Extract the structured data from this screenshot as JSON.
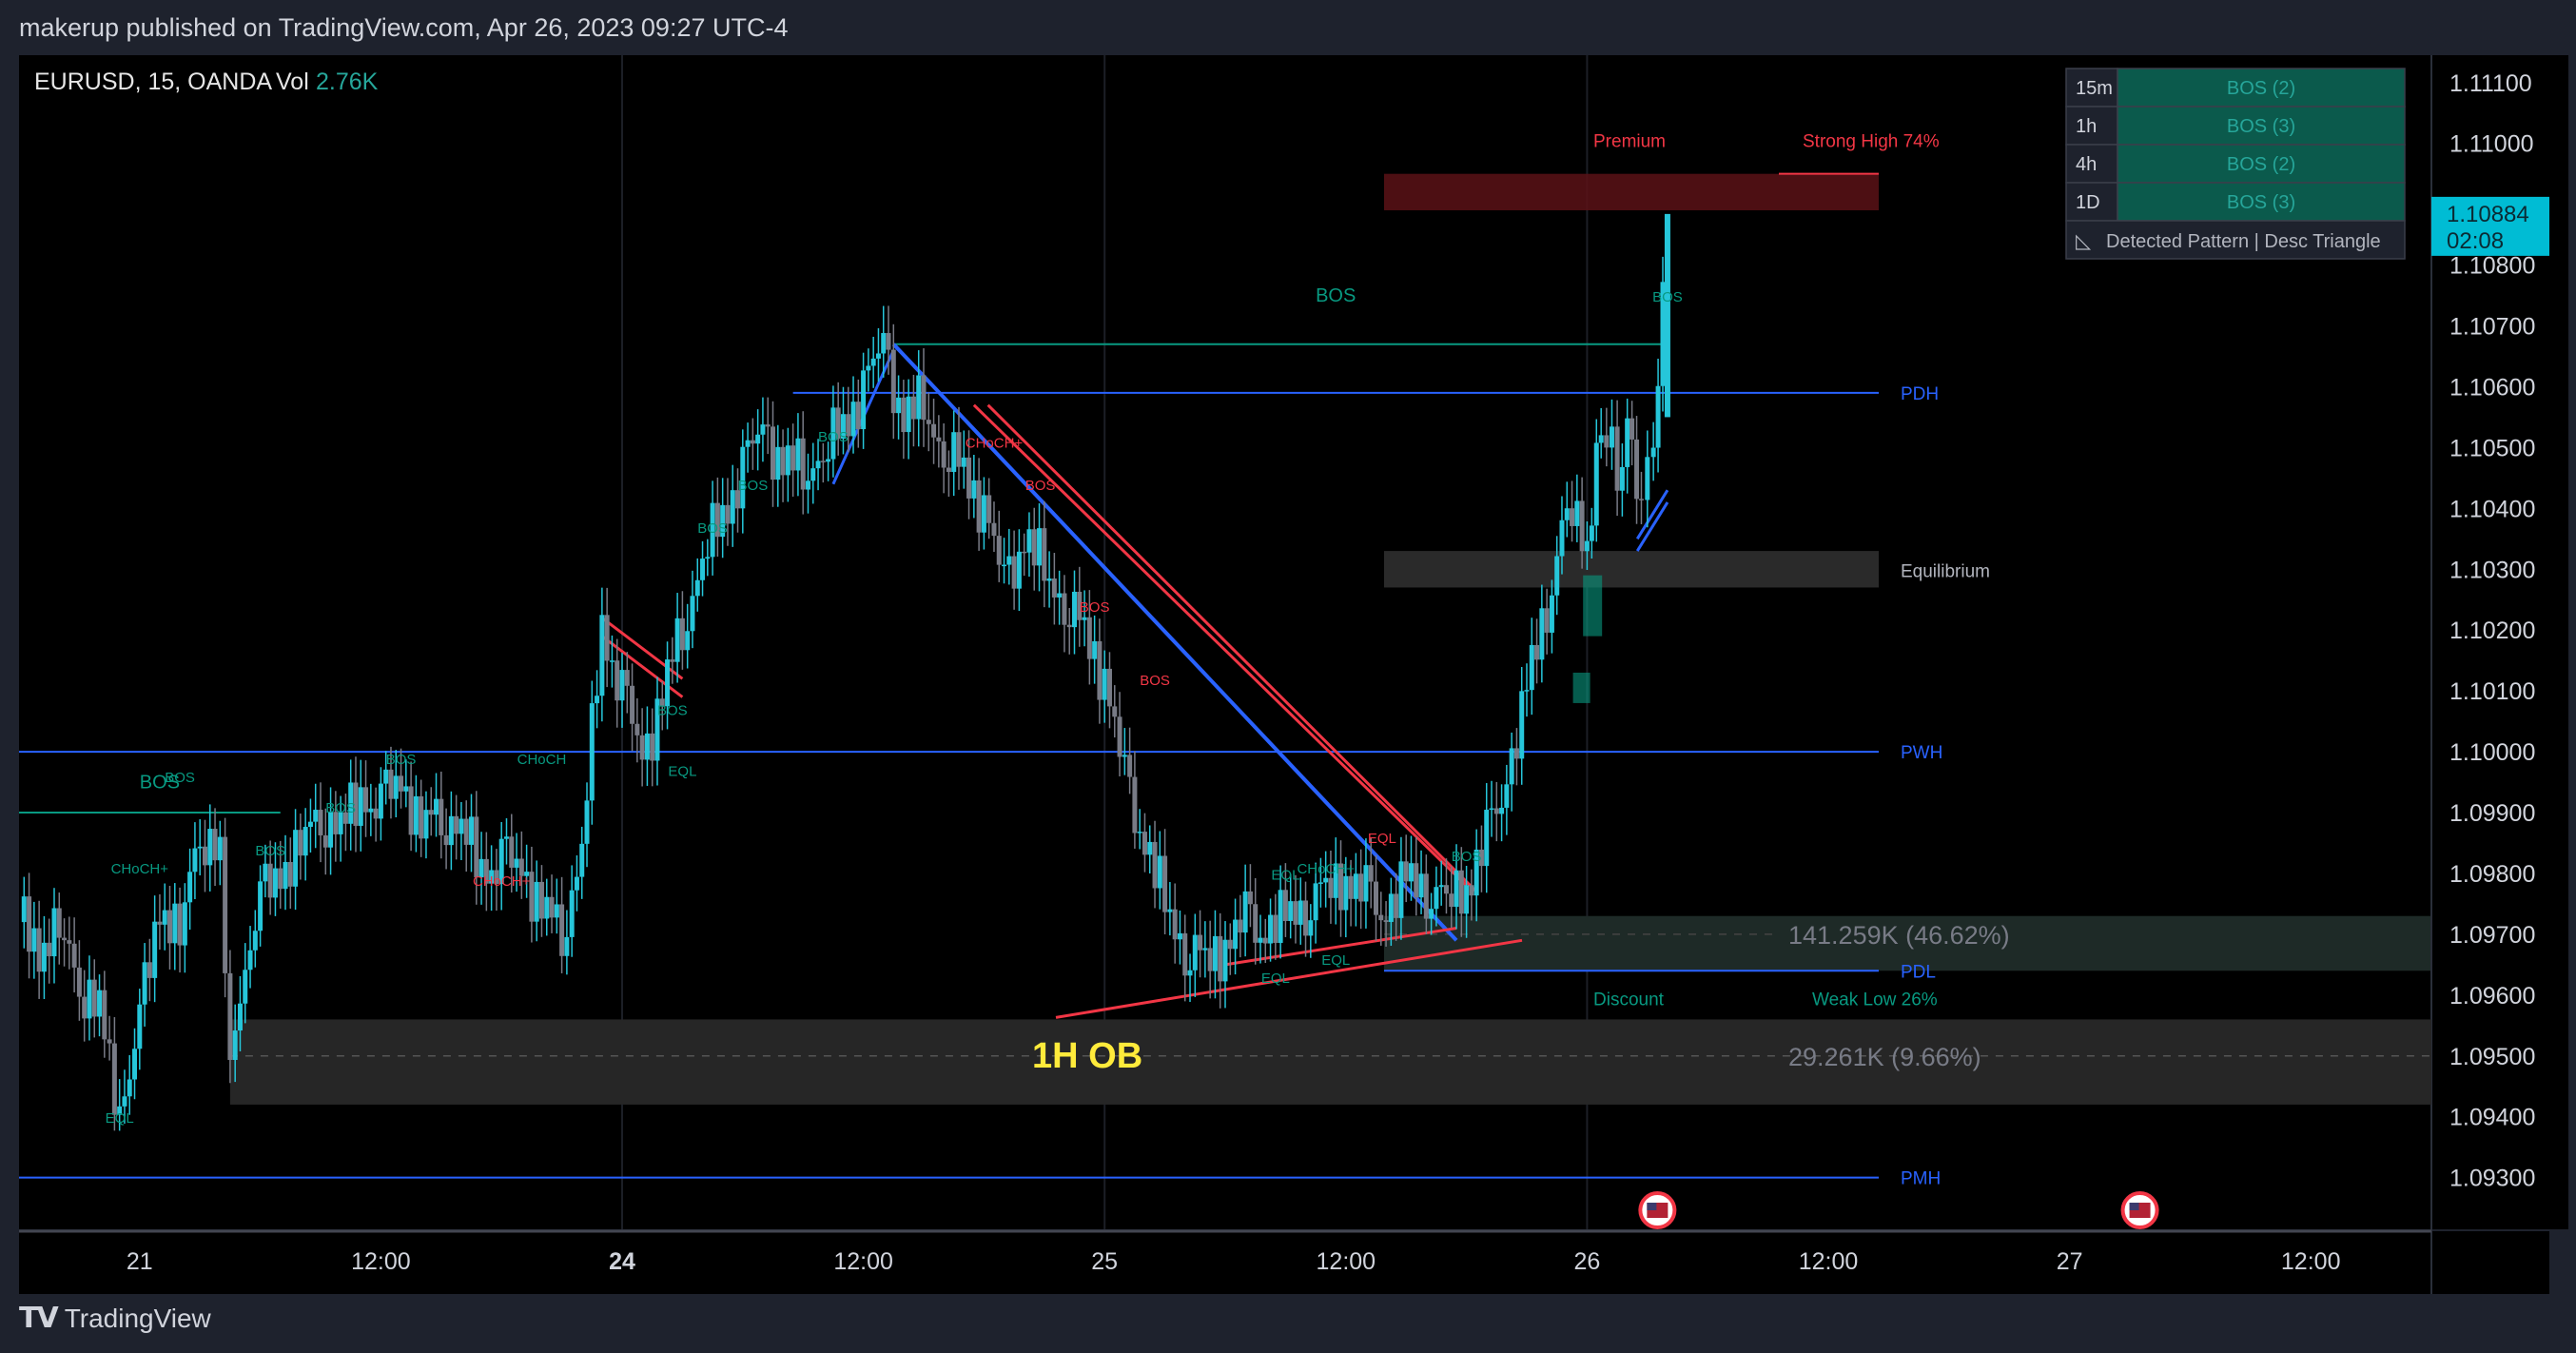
{
  "header": {
    "text": "makerup published on TradingView.com, Apr 26, 2023 09:27 UTC-4"
  },
  "footer": {
    "brand": "TradingView"
  },
  "legend": {
    "symbol": "EURUSD, 15, OANDA",
    "vol_label": "Vol",
    "vol_value": "2.76K"
  },
  "price_axis": {
    "ticks": [
      "1.11100",
      "1.11000",
      "1.10800",
      "1.10700",
      "1.10600",
      "1.10500",
      "1.10400",
      "1.10300",
      "1.10200",
      "1.10100",
      "1.10000",
      "1.09900",
      "1.09800",
      "1.09700",
      "1.09600",
      "1.09500",
      "1.09400",
      "1.09300"
    ],
    "tick_values": [
      1.111,
      1.11,
      1.108,
      1.107,
      1.106,
      1.105,
      1.104,
      1.103,
      1.102,
      1.101,
      1.1,
      1.099,
      1.098,
      1.097,
      1.096,
      1.095,
      1.094,
      1.093
    ],
    "last_price": "1.10884",
    "countdown": "02:08",
    "last_value": 1.10884
  },
  "time_axis": {
    "labels": [
      {
        "text": "21",
        "bold": false,
        "hour": 12
      },
      {
        "text": "12:00",
        "bold": false,
        "hour": 24
      },
      {
        "text": "24",
        "bold": true,
        "hour": 36
      },
      {
        "text": "12:00",
        "bold": false,
        "hour": 48
      },
      {
        "text": "25",
        "bold": false,
        "hour": 60
      },
      {
        "text": "12:00",
        "bold": false,
        "hour": 72
      },
      {
        "text": "26",
        "bold": false,
        "hour": 84
      },
      {
        "text": "12:00",
        "bold": false,
        "hour": 96
      },
      {
        "text": "27",
        "bold": false,
        "hour": 108
      },
      {
        "text": "12:00",
        "bold": false,
        "hour": 120
      }
    ]
  },
  "mtf_table": [
    {
      "tf": "15m",
      "value": "BOS (2)"
    },
    {
      "tf": "1h",
      "value": "BOS (3)"
    },
    {
      "tf": "4h",
      "value": "BOS (2)"
    },
    {
      "tf": "1D",
      "value": "BOS (3)"
    }
  ],
  "pattern": {
    "icon": "triangle-ruler-icon",
    "text": "Detected Pattern | Desc Triangle"
  },
  "levels": [
    {
      "label": "PDH",
      "price": 1.1059,
      "color": "#2962ff"
    },
    {
      "label": "PWH",
      "price": 1.1,
      "color": "#2962ff"
    },
    {
      "label": "PDL",
      "price": 1.0964,
      "color": "#2962ff"
    },
    {
      "label": "PMH",
      "price": 1.093,
      "color": "#2962ff"
    }
  ],
  "zones": {
    "premium": {
      "label": "Premium",
      "top": 1.1095,
      "bottom": 1.1089
    },
    "strong_high": {
      "label": "Strong High 74%",
      "price": 1.1095
    },
    "equilibrium": {
      "label": "Equilibrium",
      "top": 1.1033,
      "bottom": 1.1027
    },
    "discount": {
      "label": "Discount",
      "top": 1.0973,
      "bottom": 1.0964
    },
    "weak_low": {
      "label": "Weak Low 26%"
    }
  },
  "volume_profile": [
    {
      "text": "141.259K (46.62%)",
      "price": 1.097
    },
    {
      "text": "29.261K (9.66%)",
      "price": 1.095
    }
  ],
  "order_block": {
    "label": "1H OB",
    "top": 1.0956,
    "bottom": 1.0942
  },
  "structure_labels": [
    {
      "text": "BOS",
      "color": "#089981",
      "hour": 14,
      "price": 1.0995
    },
    {
      "text": "BOS",
      "color": "#089981",
      "hour": 88,
      "price": 1.1074
    },
    {
      "text": "CHoCH+",
      "color": "#089981",
      "hour": 2,
      "price": 1.098
    },
    {
      "text": "CHoCH",
      "color": "#f23645",
      "hour": 3.5,
      "price": 1.096
    },
    {
      "text": "EQL",
      "color": "#089981",
      "hour": 11,
      "price": 1.0939
    },
    {
      "text": "CHoCH+",
      "color": "#089981",
      "hour": 12,
      "price": 1.098
    },
    {
      "text": "BOS",
      "color": "#089981",
      "hour": 18.5,
      "price": 1.0983
    },
    {
      "text": "BOS",
      "color": "#089981",
      "hour": 22,
      "price": 1.099
    },
    {
      "text": "BOS",
      "color": "#089981",
      "hour": 25,
      "price": 1.0998
    },
    {
      "text": "CHoCH+",
      "color": "#f23645",
      "hour": 30,
      "price": 1.0978
    },
    {
      "text": "CHoCH",
      "color": "#089981",
      "hour": 32,
      "price": 1.0998
    },
    {
      "text": "EQL",
      "color": "#089981",
      "hour": 39,
      "price": 1.0996
    },
    {
      "text": "BOS",
      "color": "#089981",
      "hour": 38.5,
      "price": 1.1006
    },
    {
      "text": "BOS",
      "color": "#089981",
      "hour": 40.5,
      "price": 1.1036
    },
    {
      "text": "BOS",
      "color": "#089981",
      "hour": 42.5,
      "price": 1.1043
    },
    {
      "text": "BOS",
      "color": "#089981",
      "hour": 46.5,
      "price": 1.1051
    },
    {
      "text": "CHoCH+",
      "color": "#f23645",
      "hour": 54.5,
      "price": 1.105
    },
    {
      "text": "BOS",
      "color": "#f23645",
      "hour": 56.8,
      "price": 1.1043
    },
    {
      "text": "BOS",
      "color": "#f23645",
      "hour": 59.5,
      "price": 1.1023
    },
    {
      "text": "BOS",
      "color": "#f23645",
      "hour": 62.5,
      "price": 1.1011
    },
    {
      "text": "EQL",
      "color": "#f23645",
      "hour": 73.8,
      "price": 1.0985
    },
    {
      "text": "EQL",
      "color": "#089981",
      "hour": 69,
      "price": 1.0979
    },
    {
      "text": "CHoCH+",
      "color": "#089981",
      "hour": 71,
      "price": 1.098
    },
    {
      "text": "BOS",
      "color": "#089981",
      "hour": 78,
      "price": 1.0982
    },
    {
      "text": "EQL",
      "color": "#089981",
      "hour": 68.5,
      "price": 1.0962
    },
    {
      "text": "EQL",
      "color": "#089981",
      "hour": 71.5,
      "price": 1.0965
    }
  ],
  "icons": [
    {
      "name": "us-flag-icon",
      "hour": 87.5
    },
    {
      "name": "us-flag-icon",
      "hour": 111.5
    }
  ],
  "chart_data": {
    "type": "candlestick",
    "x_unit": "hours",
    "xlim": [
      6,
      126
    ],
    "ylim": [
      1.09215,
      1.11145
    ],
    "closes": [
      [
        6,
        1.0972
      ],
      [
        7,
        1.0968
      ],
      [
        8,
        1.0971
      ],
      [
        9,
        1.0963
      ],
      [
        10,
        1.0957
      ],
      [
        11,
        1.094
      ],
      [
        12,
        1.0955
      ],
      [
        13,
        1.0975
      ],
      [
        14,
        1.097
      ],
      [
        15,
        1.0988
      ],
      [
        16,
        1.0983
      ],
      [
        16.5,
        1.0945
      ],
      [
        17,
        1.0962
      ],
      [
        18,
        1.0975
      ],
      [
        19,
        1.098
      ],
      [
        20,
        1.0985
      ],
      [
        21,
        1.099
      ],
      [
        22,
        1.0988
      ],
      [
        23,
        1.0992
      ],
      [
        24,
        1.0991
      ],
      [
        25,
        1.0995
      ],
      [
        26,
        1.0988
      ],
      [
        27,
        1.099
      ],
      [
        28,
        1.0988
      ],
      [
        29,
        1.098
      ],
      [
        30,
        1.0982
      ],
      [
        31,
        1.098
      ],
      [
        32,
        1.0975
      ],
      [
        33,
        1.097
      ],
      [
        34,
        1.0985
      ],
      [
        35,
        1.102
      ],
      [
        36,
        1.101
      ],
      [
        37,
        1.0998
      ],
      [
        38,
        1.101
      ],
      [
        39,
        1.102
      ],
      [
        40,
        1.1033
      ],
      [
        41,
        1.1038
      ],
      [
        42,
        1.1047
      ],
      [
        43,
        1.1052
      ],
      [
        44,
        1.1048
      ],
      [
        45,
        1.1046
      ],
      [
        46,
        1.105
      ],
      [
        47,
        1.1053
      ],
      [
        48,
        1.106
      ],
      [
        49,
        1.1066
      ],
      [
        50,
        1.1055
      ],
      [
        51,
        1.1057
      ],
      [
        52,
        1.105
      ],
      [
        53,
        1.1046
      ],
      [
        54,
        1.104
      ],
      [
        55,
        1.1027
      ],
      [
        56,
        1.1035
      ],
      [
        57,
        1.103
      ],
      [
        58,
        1.1025
      ],
      [
        59,
        1.102
      ],
      [
        60,
        1.1012
      ],
      [
        61,
        1.0995
      ],
      [
        62,
        1.0985
      ],
      [
        63,
        1.0975
      ],
      [
        64,
        1.0968
      ],
      [
        65,
        1.0966
      ],
      [
        66,
        1.0968
      ],
      [
        67,
        1.0972
      ],
      [
        68,
        1.097
      ],
      [
        69,
        1.0973
      ],
      [
        70,
        1.0975
      ],
      [
        71,
        1.0978
      ],
      [
        72,
        1.0979
      ],
      [
        73,
        1.0976
      ],
      [
        74,
        1.0973
      ],
      [
        75,
        1.0979
      ],
      [
        76,
        1.0978
      ],
      [
        77,
        1.0976
      ],
      [
        78,
        1.0978
      ],
      [
        79,
        1.0985
      ],
      [
        80,
        1.0995
      ],
      [
        81,
        1.101
      ],
      [
        82,
        1.1025
      ],
      [
        83,
        1.104
      ],
      [
        84,
        1.1035
      ],
      [
        84.7,
        1.1055
      ],
      [
        85.5,
        1.1045
      ],
      [
        86,
        1.1055
      ],
      [
        86.7,
        1.104
      ],
      [
        87.3,
        1.105
      ],
      [
        88,
        1.1088
      ]
    ],
    "series": [
      {
        "name": "EURUSD",
        "color": "#26c6da"
      }
    ]
  }
}
